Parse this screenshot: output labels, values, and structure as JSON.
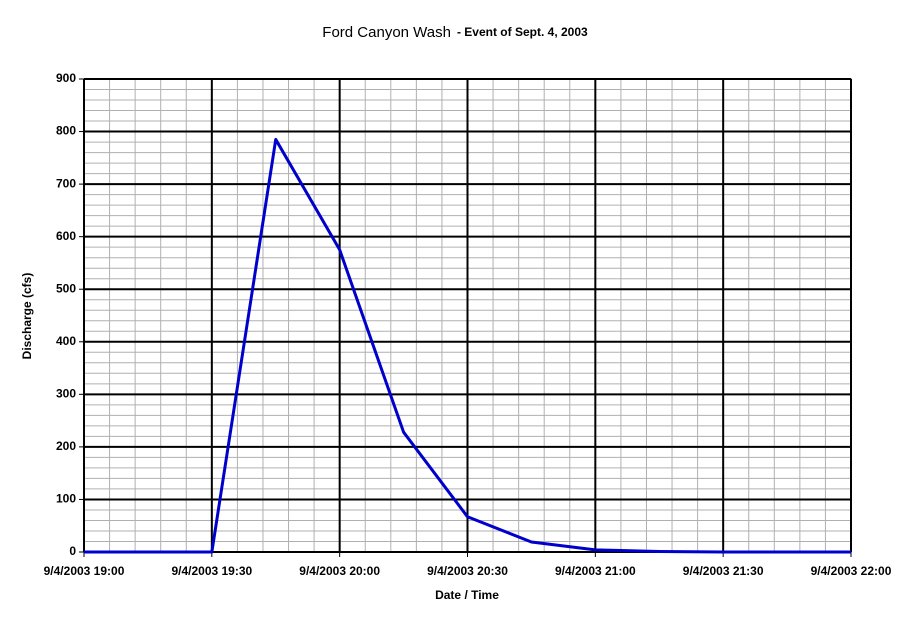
{
  "chart_data": {
    "type": "line",
    "title": "Ford Canyon Wash",
    "subtitle": "- Event of Sept. 4, 2003",
    "x_label": "Date / Time",
    "y_label": "Discharge (cfs)",
    "x": [
      "9/4/2003 19:00",
      "9/4/2003 19:15",
      "9/4/2003 19:30",
      "9/4/2003 19:45",
      "9/4/2003 20:00",
      "9/4/2003 20:15",
      "9/4/2003 20:30",
      "9/4/2003 20:45",
      "9/4/2003 21:00",
      "9/4/2003 21:15",
      "9/4/2003 21:30",
      "9/4/2003 21:45",
      "9/4/2003 22:00"
    ],
    "series": [
      {
        "name": "Discharge",
        "color": "#0000cc",
        "values": [
          0,
          0,
          0,
          785,
          575,
          228,
          67,
          19,
          4,
          1,
          0,
          0,
          0
        ]
      }
    ],
    "xlim": [
      "9/4/2003 19:00",
      "9/4/2003 22:00"
    ],
    "xticks": [
      "9/4/2003 19:00",
      "9/4/2003 19:30",
      "9/4/2003 20:00",
      "9/4/2003 20:30",
      "9/4/2003 21:00",
      "9/4/2003 21:30",
      "9/4/2003 22:00"
    ],
    "ylim": [
      0,
      900
    ],
    "yticks": [
      0,
      100,
      200,
      300,
      400,
      500,
      600,
      700,
      800,
      900
    ],
    "grid": true,
    "minor_grid": true
  }
}
